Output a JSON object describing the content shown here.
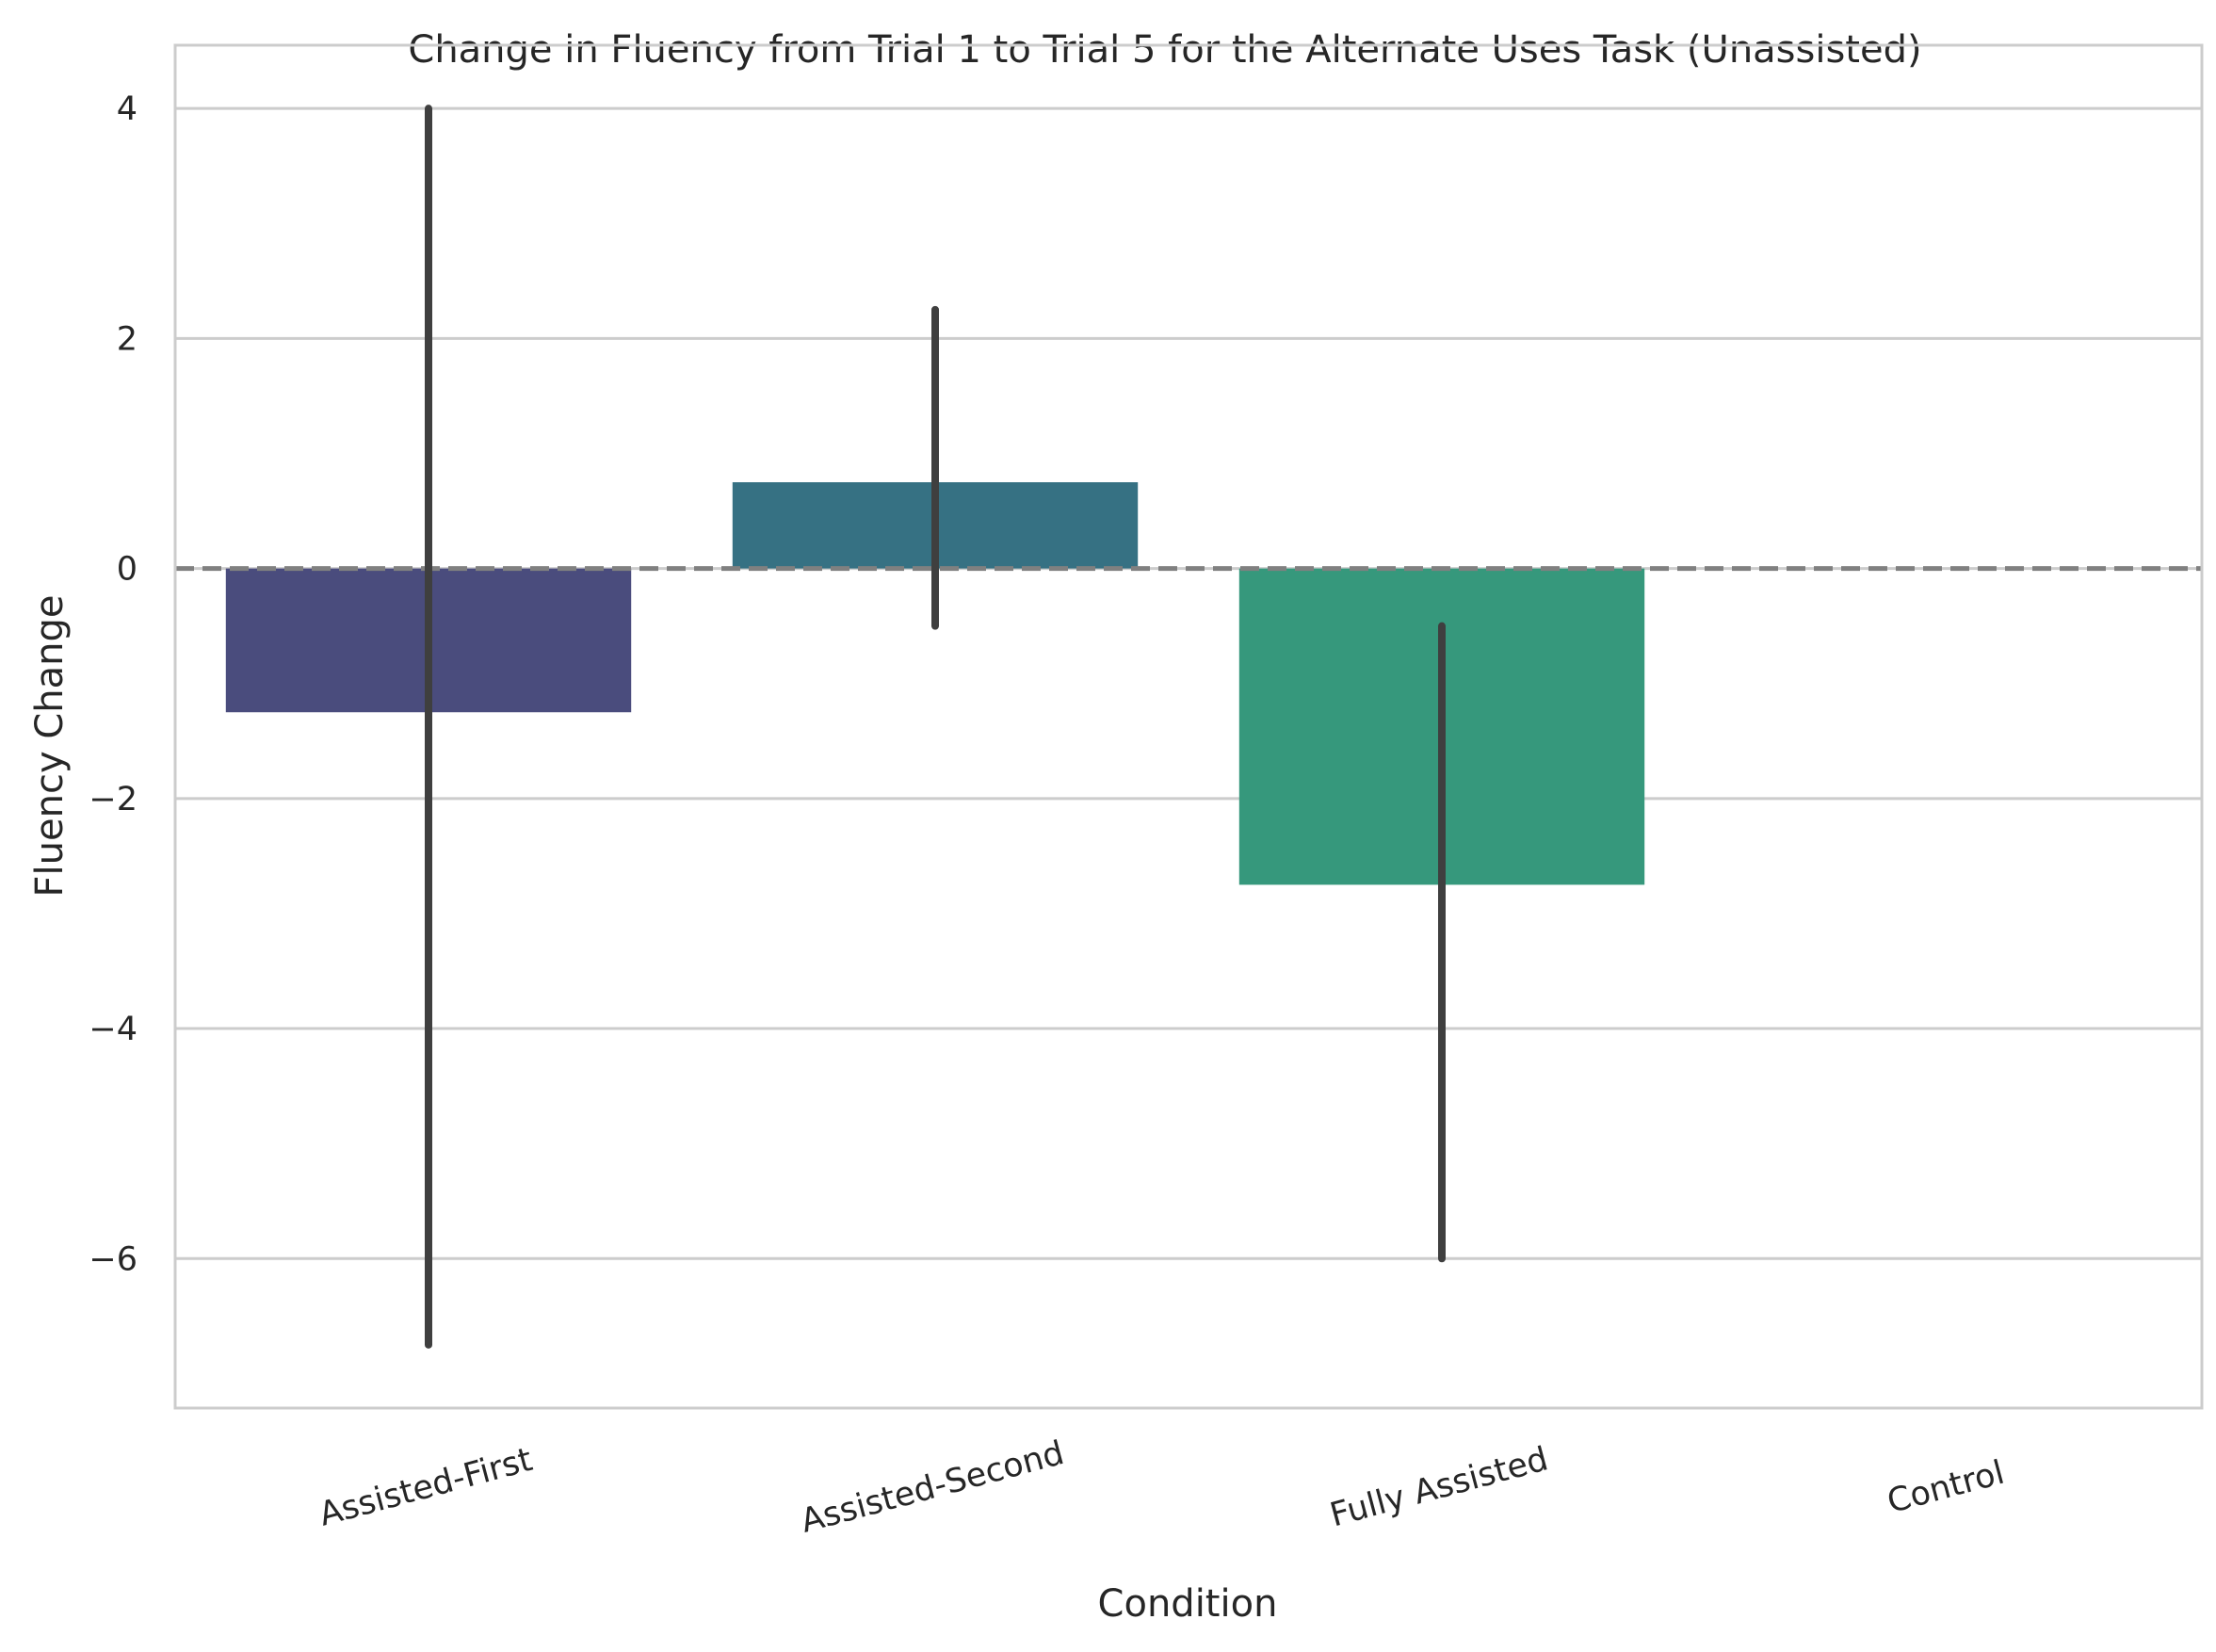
{
  "chart_data": {
    "type": "bar",
    "title": "Change in Fluency from Trial 1 to Trial 5 for the Alternate Uses Task (Unassisted)",
    "xlabel": "Condition",
    "ylabel": "Fluency Change",
    "categories": [
      "Assisted-First",
      "Assisted-Second",
      "Fully Assisted",
      "Control"
    ],
    "values": [
      -1.25,
      0.75,
      -2.75,
      null
    ],
    "error_low": [
      -6.75,
      -0.5,
      -6.0,
      null
    ],
    "error_high": [
      4.0,
      2.25,
      -0.5,
      null
    ],
    "colors": [
      "#4a4c7d",
      "#367183",
      "#36987c",
      null
    ],
    "ylim": [
      -7.3,
      4.55
    ],
    "yticks": [
      4,
      2,
      0,
      -2,
      -4,
      -6
    ],
    "ytick_labels": [
      "4",
      "2",
      "0",
      "−2",
      "−4",
      "−6"
    ],
    "reference_line": 0,
    "grid": "horizontal",
    "tick_rotation_deg": -15
  }
}
